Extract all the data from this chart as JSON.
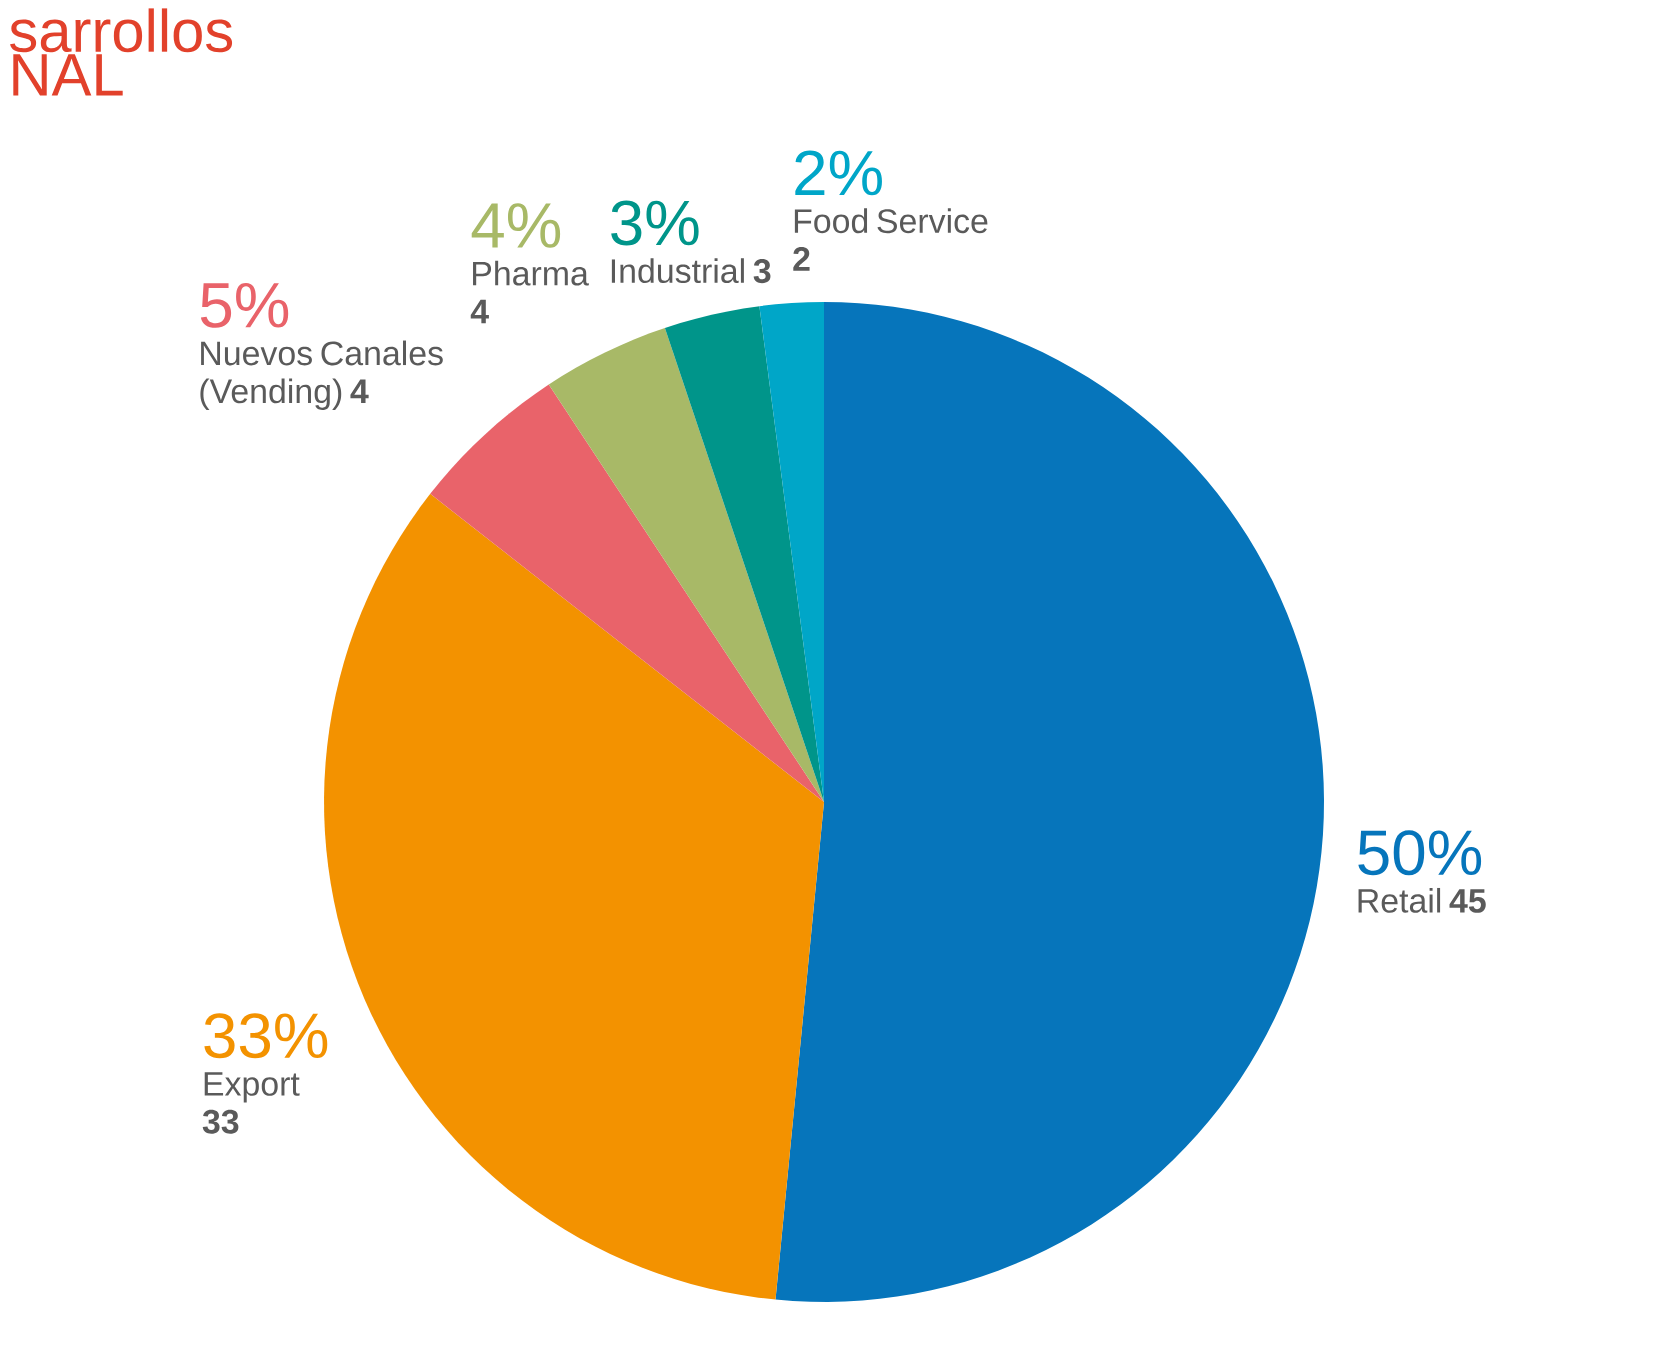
{
  "chart_data": {
    "type": "pie",
    "title": "sarrollos",
    "subtitle": "NAL",
    "categories": [
      "Retail **45**",
      "Export **33**",
      "Nuevos Canales (Vending) **4**",
      "Pharma **4**",
      "Industrial **3**",
      "Food Service **2**"
    ],
    "values": [
      50,
      33,
      5,
      4,
      3,
      2
    ],
    "value_labels": [
      "50%",
      "33%",
      "5%",
      "4%",
      "3%",
      "2%"
    ],
    "colors": [
      "#0675bb",
      "#f39200",
      "#e9636a",
      "#a8b967",
      "#00958a",
      "#00a6c8"
    ]
  }
}
